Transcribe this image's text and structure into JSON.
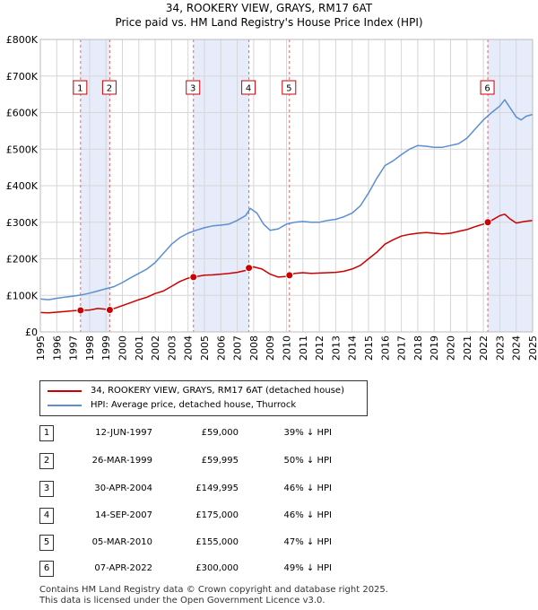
{
  "title": "34, ROOKERY VIEW, GRAYS, RM17 6AT",
  "subtitle": "Price paid vs. HM Land Registry's House Price Index (HPI)",
  "chart_data": {
    "type": "line",
    "xlim": [
      1995,
      2025
    ],
    "ylim": [
      0,
      800000
    ],
    "ytick_values": [
      0,
      100000,
      200000,
      300000,
      400000,
      500000,
      600000,
      700000,
      800000
    ],
    "ytick_labels": [
      "£0",
      "£100K",
      "£200K",
      "£300K",
      "£400K",
      "£500K",
      "£600K",
      "£700K",
      "£800K"
    ],
    "xtick_values": [
      1995,
      1996,
      1997,
      1998,
      1999,
      2000,
      2001,
      2002,
      2003,
      2004,
      2005,
      2006,
      2007,
      2008,
      2009,
      2010,
      2011,
      2012,
      2013,
      2014,
      2015,
      2016,
      2017,
      2018,
      2019,
      2020,
      2021,
      2022,
      2023,
      2024,
      2025
    ],
    "xtick_labels": [
      "1995",
      "1996",
      "1997",
      "1998",
      "1999",
      "2000",
      "2001",
      "2002",
      "2003",
      "2004",
      "2005",
      "2006",
      "2007",
      "2008",
      "2009",
      "2010",
      "2011",
      "2012",
      "2013",
      "2014",
      "2015",
      "2016",
      "2017",
      "2018",
      "2019",
      "2020",
      "2021",
      "2022",
      "2023",
      "2024",
      "2025"
    ],
    "series": [
      {
        "name": "34, ROOKERY VIEW, GRAYS, RM17 6AT (detached house)",
        "color": "#cc0000",
        "x": [
          1995.0,
          1995.5,
          1996.0,
          1996.5,
          1997.0,
          1997.45,
          1998.0,
          1998.5,
          1999.0,
          1999.23,
          1999.5,
          2000.0,
          2000.5,
          2001.0,
          2001.5,
          2002.0,
          2002.5,
          2003.0,
          2003.5,
          2004.0,
          2004.33,
          2005.0,
          2005.5,
          2006.0,
          2006.5,
          2007.0,
          2007.5,
          2007.71,
          2008.0,
          2008.5,
          2009.0,
          2009.5,
          2010.0,
          2010.18,
          2010.5,
          2011.0,
          2011.5,
          2012.0,
          2012.5,
          2013.0,
          2013.5,
          2014.0,
          2014.5,
          2015.0,
          2015.5,
          2016.0,
          2016.5,
          2017.0,
          2017.5,
          2018.0,
          2018.5,
          2019.0,
          2019.5,
          2020.0,
          2020.5,
          2021.0,
          2021.5,
          2022.0,
          2022.27,
          2022.5,
          2023.0,
          2023.3,
          2023.6,
          2024.0,
          2024.5,
          2025.0
        ],
        "values": [
          53000,
          52000,
          54000,
          56000,
          58000,
          59000,
          60000,
          64000,
          62000,
          59995,
          64000,
          72000,
          80000,
          88000,
          95000,
          105000,
          112000,
          125000,
          138000,
          147000,
          149995,
          155000,
          156000,
          158000,
          160000,
          163000,
          168000,
          175000,
          178000,
          172000,
          158000,
          150000,
          152000,
          155000,
          160000,
          162000,
          160000,
          161000,
          162000,
          163000,
          166000,
          172000,
          182000,
          200000,
          218000,
          240000,
          252000,
          262000,
          267000,
          270000,
          272000,
          270000,
          268000,
          270000,
          275000,
          280000,
          288000,
          295000,
          300000,
          305000,
          318000,
          322000,
          310000,
          298000,
          302000,
          305000
        ]
      },
      {
        "name": "HPI: Average price, detached house, Thurrock",
        "color": "#5b8fd0",
        "x": [
          1995.0,
          1995.5,
          1996.0,
          1996.5,
          1997.0,
          1997.5,
          1998.0,
          1998.5,
          1999.0,
          1999.5,
          2000.0,
          2000.5,
          2001.0,
          2001.5,
          2002.0,
          2002.5,
          2003.0,
          2003.5,
          2004.0,
          2004.5,
          2005.0,
          2005.5,
          2006.0,
          2006.5,
          2007.0,
          2007.5,
          2007.8,
          2008.2,
          2008.6,
          2009.0,
          2009.5,
          2010.0,
          2010.5,
          2011.0,
          2011.5,
          2012.0,
          2012.5,
          2013.0,
          2013.5,
          2014.0,
          2014.5,
          2015.0,
          2015.5,
          2016.0,
          2016.5,
          2017.0,
          2017.5,
          2018.0,
          2018.5,
          2019.0,
          2019.5,
          2020.0,
          2020.5,
          2021.0,
          2021.5,
          2022.0,
          2022.5,
          2023.0,
          2023.3,
          2023.6,
          2024.0,
          2024.3,
          2024.6,
          2025.0
        ],
        "values": [
          90000,
          88000,
          92000,
          95000,
          98000,
          101000,
          106000,
          112000,
          118000,
          124000,
          135000,
          148000,
          160000,
          172000,
          190000,
          215000,
          240000,
          258000,
          270000,
          278000,
          285000,
          290000,
          292000,
          295000,
          305000,
          318000,
          338000,
          325000,
          295000,
          278000,
          282000,
          295000,
          300000,
          302000,
          300000,
          300000,
          305000,
          308000,
          315000,
          325000,
          345000,
          380000,
          420000,
          455000,
          468000,
          485000,
          500000,
          510000,
          508000,
          505000,
          505000,
          510000,
          515000,
          530000,
          555000,
          580000,
          600000,
          618000,
          635000,
          615000,
          588000,
          580000,
          590000,
          595000
        ]
      }
    ],
    "sales": [
      {
        "n": "1",
        "year": 1997.45,
        "price": 59000
      },
      {
        "n": "2",
        "year": 1999.23,
        "price": 59995
      },
      {
        "n": "3",
        "year": 2004.33,
        "price": 149995
      },
      {
        "n": "4",
        "year": 2007.71,
        "price": 175000
      },
      {
        "n": "5",
        "year": 2010.18,
        "price": 155000
      },
      {
        "n": "6",
        "year": 2022.27,
        "price": 300000
      }
    ],
    "shaded_ranges": [
      [
        1997.45,
        1999.23
      ],
      [
        2004.33,
        2007.71
      ],
      [
        2022.27,
        2025.0
      ]
    ]
  },
  "legend": {
    "property_label": "34, ROOKERY VIEW, GRAYS, RM17 6AT (detached house)",
    "hpi_label": "HPI: Average price, detached house, Thurrock",
    "property_color": "#cc0000",
    "hpi_color": "#5b8fd0"
  },
  "transactions": [
    {
      "n": "1",
      "date": "12-JUN-1997",
      "price": "£59,000",
      "hpi": "39% ↓ HPI"
    },
    {
      "n": "2",
      "date": "26-MAR-1999",
      "price": "£59,995",
      "hpi": "50% ↓ HPI"
    },
    {
      "n": "3",
      "date": "30-APR-2004",
      "price": "£149,995",
      "hpi": "46% ↓ HPI"
    },
    {
      "n": "4",
      "date": "14-SEP-2007",
      "price": "£175,000",
      "hpi": "46% ↓ HPI"
    },
    {
      "n": "5",
      "date": "05-MAR-2010",
      "price": "£155,000",
      "hpi": "47% ↓ HPI"
    },
    {
      "n": "6",
      "date": "07-APR-2022",
      "price": "£300,000",
      "hpi": "49% ↓ HPI"
    }
  ],
  "footer": {
    "line1": "Contains HM Land Registry data © Crown copyright and database right 2025.",
    "line2": "This data is licensed under the Open Government Licence v3.0."
  }
}
